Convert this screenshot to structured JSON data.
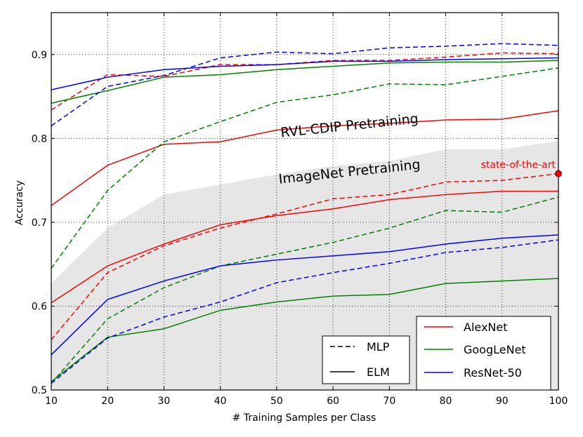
{
  "chart_data": {
    "type": "line",
    "title": "",
    "xlabel": "# Training Samples per Class",
    "ylabel": "Accuracy",
    "xlim": [
      10,
      100
    ],
    "ylim": [
      0.5,
      0.95
    ],
    "xticks": [
      10,
      20,
      30,
      40,
      50,
      60,
      70,
      80,
      90,
      100
    ],
    "yticks": [
      0.5,
      0.6,
      0.7,
      0.8,
      0.9
    ],
    "ytick_labels": [
      "0.5",
      "0.6",
      "0.7",
      "0.8",
      "0.9"
    ],
    "grid": true,
    "x": [
      10,
      20,
      30,
      40,
      50,
      60,
      70,
      80,
      90,
      100
    ],
    "shaded_region": {
      "description": "gray band separating pretraining regimes",
      "upper": [
        0.627,
        0.693,
        0.733,
        0.745,
        0.757,
        0.767,
        0.773,
        0.787,
        0.787,
        0.797
      ]
    },
    "region_labels": [
      {
        "text": "RVL-CDIP Pretraining",
        "x": 63,
        "y": 0.81
      },
      {
        "text": "ImageNet Pretraining",
        "x": 63,
        "y": 0.755
      }
    ],
    "annotation": {
      "text": "state-of-the-art",
      "x": 100,
      "y": 0.758,
      "color": "#ff0000"
    },
    "series": [
      {
        "name": "AlexNet MLP RVL",
        "model": "AlexNet",
        "head": "MLP",
        "pretraining": "RVL-CDIP",
        "color": "#ff0000",
        "values": [
          0.834,
          0.876,
          0.874,
          0.888,
          0.888,
          0.893,
          0.893,
          0.897,
          0.902,
          0.901
        ]
      },
      {
        "name": "AlexNet ELM RVL",
        "model": "AlexNet",
        "head": "ELM",
        "pretraining": "RVL-CDIP",
        "color": "#ff0000",
        "values": [
          0.72,
          0.768,
          0.793,
          0.796,
          0.81,
          0.815,
          0.818,
          0.822,
          0.823,
          0.833
        ]
      },
      {
        "name": "GoogLeNet MLP RVL",
        "model": "GoogLeNet",
        "head": "MLP",
        "pretraining": "RVL-CDIP",
        "color": "#008000",
        "values": [
          0.645,
          0.738,
          0.796,
          0.82,
          0.843,
          0.852,
          0.865,
          0.864,
          0.874,
          0.884
        ]
      },
      {
        "name": "GoogLeNet ELM RVL",
        "model": "GoogLeNet",
        "head": "ELM",
        "pretraining": "RVL-CDIP",
        "color": "#008000",
        "values": [
          0.842,
          0.857,
          0.873,
          0.876,
          0.882,
          0.886,
          0.89,
          0.891,
          0.891,
          0.893
        ]
      },
      {
        "name": "ResNet-50 MLP RVL",
        "model": "ResNet-50",
        "head": "MLP",
        "pretraining": "RVL-CDIP",
        "color": "#0000ff",
        "values": [
          0.815,
          0.862,
          0.875,
          0.896,
          0.903,
          0.901,
          0.908,
          0.91,
          0.913,
          0.911
        ]
      },
      {
        "name": "ResNet-50 ELM RVL",
        "model": "ResNet-50",
        "head": "ELM",
        "pretraining": "RVL-CDIP",
        "color": "#0000ff",
        "values": [
          0.858,
          0.873,
          0.882,
          0.886,
          0.888,
          0.892,
          0.892,
          0.894,
          0.895,
          0.896
        ]
      },
      {
        "name": "AlexNet MLP ImageNet",
        "model": "AlexNet",
        "head": "MLP",
        "pretraining": "ImageNet",
        "color": "#ff0000",
        "values": [
          0.56,
          0.64,
          0.672,
          0.693,
          0.71,
          0.728,
          0.733,
          0.748,
          0.75,
          0.758
        ]
      },
      {
        "name": "AlexNet ELM ImageNet",
        "model": "AlexNet",
        "head": "ELM",
        "pretraining": "ImageNet",
        "color": "#ff0000",
        "values": [
          0.604,
          0.648,
          0.674,
          0.697,
          0.708,
          0.716,
          0.727,
          0.733,
          0.737,
          0.737
        ]
      },
      {
        "name": "GoogLeNet MLP ImageNet",
        "model": "GoogLeNet",
        "head": "MLP",
        "pretraining": "ImageNet",
        "color": "#008000",
        "values": [
          0.508,
          0.585,
          0.622,
          0.648,
          0.662,
          0.676,
          0.693,
          0.714,
          0.712,
          0.73
        ]
      },
      {
        "name": "GoogLeNet ELM ImageNet",
        "model": "GoogLeNet",
        "head": "ELM",
        "pretraining": "ImageNet",
        "color": "#008000",
        "values": [
          0.51,
          0.563,
          0.573,
          0.595,
          0.605,
          0.612,
          0.614,
          0.627,
          0.63,
          0.633
        ]
      },
      {
        "name": "ResNet-50 MLP ImageNet",
        "model": "ResNet-50",
        "head": "MLP",
        "pretraining": "ImageNet",
        "color": "#0000ff",
        "values": [
          0.508,
          0.562,
          0.587,
          0.605,
          0.628,
          0.64,
          0.651,
          0.664,
          0.67,
          0.679
        ]
      },
      {
        "name": "ResNet-50 ELM ImageNet",
        "model": "ResNet-50",
        "head": "ELM",
        "pretraining": "ImageNet",
        "color": "#0000ff",
        "values": [
          0.542,
          0.608,
          0.63,
          0.648,
          0.655,
          0.66,
          0.665,
          0.674,
          0.681,
          0.685
        ]
      }
    ],
    "legend_head": {
      "placement": "lower-center",
      "entries": [
        {
          "label": "MLP",
          "style": "dashed"
        },
        {
          "label": "ELM",
          "style": "solid"
        }
      ]
    },
    "legend_model": {
      "placement": "lower-right",
      "entries": [
        {
          "label": "AlexNet",
          "color": "#ff0000"
        },
        {
          "label": "GoogLeNet",
          "color": "#008000"
        },
        {
          "label": "ResNet-50",
          "color": "#0000ff"
        }
      ]
    }
  }
}
